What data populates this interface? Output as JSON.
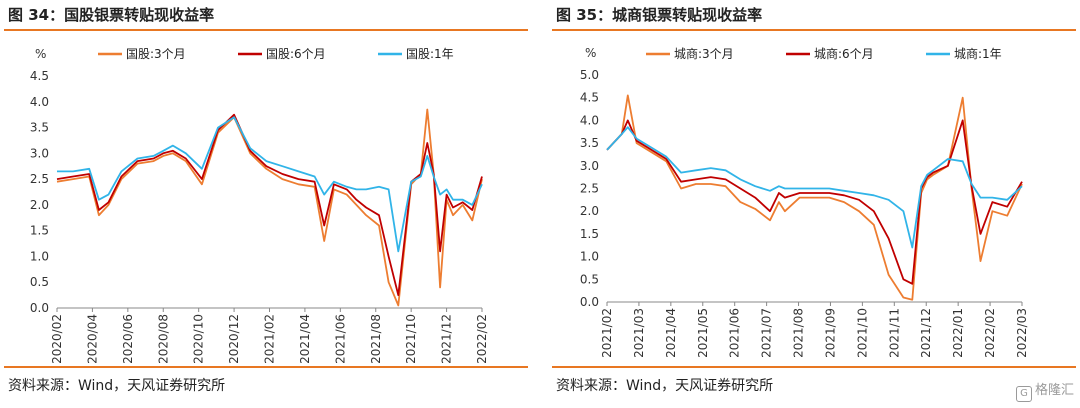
{
  "source_note": "资料来源：Wind，天风证券研究所",
  "watermark": {
    "icon": "gelonghui-logo-icon",
    "text": "格隆汇"
  },
  "chart_data": [
    {
      "type": "line",
      "title": "图 34：国股银票转贴现收益率",
      "ylabel": "%",
      "ylim": [
        0,
        4.5
      ],
      "yticks": [
        "0.0",
        "0.5",
        "1.0",
        "1.5",
        "2.0",
        "2.5",
        "3.0",
        "3.5",
        "4.0",
        "4.5"
      ],
      "categories": [
        "2020/02",
        "2020/04",
        "2020/06",
        "2020/08",
        "2020/10",
        "2020/12",
        "2021/02",
        "2021/04",
        "2021/06",
        "2021/08",
        "2021/10",
        "2021/12",
        "2022/02"
      ],
      "x": [
        0,
        0.5,
        1,
        1.3,
        1.6,
        2,
        2.5,
        3,
        3.3,
        3.6,
        4,
        4.5,
        5,
        5.5,
        6,
        6.5,
        7,
        7.5,
        8,
        8.3,
        8.6,
        9,
        9.3,
        9.6,
        10,
        10.3,
        10.6,
        11,
        11.3,
        11.5,
        11.7,
        11.9,
        12.1,
        12.3,
        12.6,
        12.9,
        13.2
      ],
      "grid": false,
      "legend": "top",
      "series": [
        {
          "name": "国股:3个月",
          "color": "#ed7d31",
          "values": [
            2.45,
            2.5,
            2.55,
            1.8,
            2.0,
            2.5,
            2.8,
            2.85,
            2.95,
            3.0,
            2.85,
            2.4,
            3.4,
            3.7,
            3.0,
            2.7,
            2.5,
            2.4,
            2.35,
            1.3,
            2.3,
            2.2,
            2.0,
            1.8,
            1.6,
            0.5,
            0.05,
            2.4,
            2.6,
            3.85,
            2.6,
            0.4,
            2.1,
            1.8,
            2.0,
            1.7,
            2.5
          ]
        },
        {
          "name": "国股:6个月",
          "color": "#c00000",
          "values": [
            2.5,
            2.55,
            2.6,
            1.9,
            2.05,
            2.55,
            2.85,
            2.9,
            3.0,
            3.05,
            2.9,
            2.5,
            3.45,
            3.75,
            3.05,
            2.75,
            2.6,
            2.5,
            2.45,
            1.6,
            2.4,
            2.3,
            2.1,
            1.95,
            1.8,
            1.0,
            0.25,
            2.45,
            2.6,
            3.2,
            2.6,
            1.1,
            2.2,
            1.95,
            2.05,
            1.9,
            2.55
          ]
        },
        {
          "name": "国股:1年",
          "color": "#31b4e8",
          "values": [
            2.65,
            2.65,
            2.7,
            2.1,
            2.2,
            2.65,
            2.9,
            2.95,
            3.05,
            3.15,
            3.0,
            2.7,
            3.5,
            3.7,
            3.1,
            2.85,
            2.75,
            2.65,
            2.55,
            2.2,
            2.45,
            2.35,
            2.3,
            2.3,
            2.35,
            2.3,
            1.1,
            2.45,
            2.55,
            2.95,
            2.55,
            2.2,
            2.3,
            2.1,
            2.1,
            2.0,
            2.4
          ]
        }
      ]
    },
    {
      "type": "line",
      "title": "图 35：城商银票转贴现收益率",
      "ylabel": "%",
      "ylim": [
        0,
        5.0
      ],
      "yticks": [
        "0.0",
        "0.5",
        "1.0",
        "1.5",
        "2.0",
        "2.5",
        "3.0",
        "3.5",
        "4.0",
        "4.5",
        "5.0"
      ],
      "categories": [
        "2021/02",
        "2021/03",
        "2021/04",
        "2021/05",
        "2021/06",
        "2021/07",
        "2021/08",
        "2021/09",
        "2021/10",
        "2021/11",
        "2021/12",
        "2022/01",
        "2022/02",
        "2022/03"
      ],
      "x": [
        0,
        0.5,
        0.7,
        1,
        1.5,
        2,
        2.5,
        3,
        3.5,
        4,
        4.5,
        5,
        5.5,
        5.8,
        6,
        6.5,
        7,
        7.5,
        8,
        8.5,
        9,
        9.5,
        10,
        10.3,
        10.6,
        10.8,
        11,
        11.5,
        12,
        12.3,
        12.6,
        13,
        13.5,
        14
      ],
      "grid": false,
      "legend": "top",
      "series": [
        {
          "name": "城商:3个月",
          "color": "#ed7d31",
          "values": [
            3.35,
            3.7,
            4.55,
            3.5,
            3.3,
            3.1,
            2.5,
            2.6,
            2.6,
            2.55,
            2.2,
            2.05,
            1.8,
            2.2,
            2.0,
            2.3,
            2.3,
            2.3,
            2.2,
            2.0,
            1.7,
            0.6,
            0.1,
            0.05,
            2.4,
            2.7,
            2.8,
            3.0,
            4.5,
            2.5,
            0.9,
            2.0,
            1.9,
            2.6
          ]
        },
        {
          "name": "城商:6个月",
          "color": "#c00000",
          "values": [
            3.35,
            3.7,
            4.0,
            3.55,
            3.35,
            3.15,
            2.65,
            2.7,
            2.75,
            2.7,
            2.5,
            2.3,
            2.0,
            2.4,
            2.3,
            2.4,
            2.4,
            2.4,
            2.35,
            2.25,
            2.0,
            1.4,
            0.5,
            0.4,
            2.5,
            2.75,
            2.85,
            3.0,
            4.0,
            2.55,
            1.5,
            2.2,
            2.1,
            2.65
          ]
        },
        {
          "name": "城商:1年",
          "color": "#31b4e8",
          "values": [
            3.35,
            3.7,
            3.85,
            3.6,
            3.4,
            3.2,
            2.85,
            2.9,
            2.95,
            2.9,
            2.7,
            2.55,
            2.45,
            2.55,
            2.5,
            2.5,
            2.5,
            2.5,
            2.45,
            2.4,
            2.35,
            2.25,
            2.0,
            1.2,
            2.55,
            2.8,
            2.9,
            3.15,
            3.1,
            2.6,
            2.3,
            2.3,
            2.25,
            2.55
          ]
        }
      ]
    }
  ]
}
